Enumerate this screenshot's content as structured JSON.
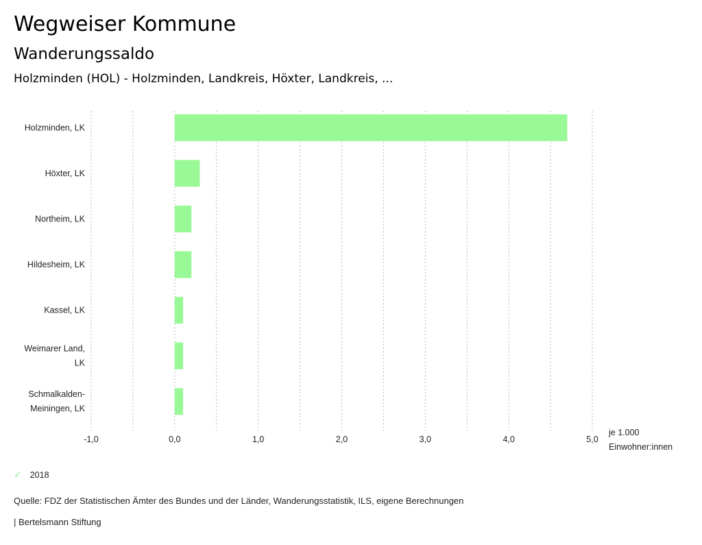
{
  "header": {
    "title": "Wegweiser Kommune",
    "subtitle": "Wanderungssaldo",
    "region": "Holzminden (HOL) - Holzminden, Landkreis, Höxter, Landkreis, ..."
  },
  "chart_data": {
    "type": "bar",
    "orientation": "horizontal",
    "categories": [
      [
        "Holzminden, LK"
      ],
      [
        "Höxter, LK"
      ],
      [
        "Northeim, LK"
      ],
      [
        "Hildesheim, LK"
      ],
      [
        "Kassel, LK"
      ],
      [
        "Weimarer Land,",
        "LK"
      ],
      [
        "Schmalkalden-",
        "Meiningen, LK"
      ]
    ],
    "series": [
      {
        "name": "2018",
        "color": "#99f996",
        "values": [
          4.7,
          0.3,
          0.2,
          0.2,
          0.1,
          0.1,
          0.1
        ]
      }
    ],
    "xlim": [
      -1.0,
      5.0
    ],
    "xticks": [
      -1.0,
      0.0,
      1.0,
      2.0,
      3.0,
      4.0,
      5.0
    ],
    "xtick_labels": [
      "-1,0",
      "0,0",
      "1,0",
      "2,0",
      "3,0",
      "4,0",
      "5,0"
    ],
    "gridlines": [
      -1.0,
      -0.5,
      0.0,
      0.5,
      1.0,
      1.5,
      2.0,
      2.5,
      3.0,
      3.5,
      4.0,
      4.5,
      5.0
    ],
    "grid": true,
    "unit_label": [
      "je 1.000",
      "Einwohner:innen"
    ],
    "legend_position": "bottom-left"
  },
  "legend": {
    "items": [
      {
        "label": "2018",
        "icon": "check-icon",
        "color": "#99f08f"
      }
    ]
  },
  "footer": {
    "source": "Quelle: FDZ der Statistischen Ämter des Bundes und der Länder, Wanderungsstatistik, ILS, eigene Berechnungen",
    "credit": "| Bertelsmann Stiftung"
  }
}
